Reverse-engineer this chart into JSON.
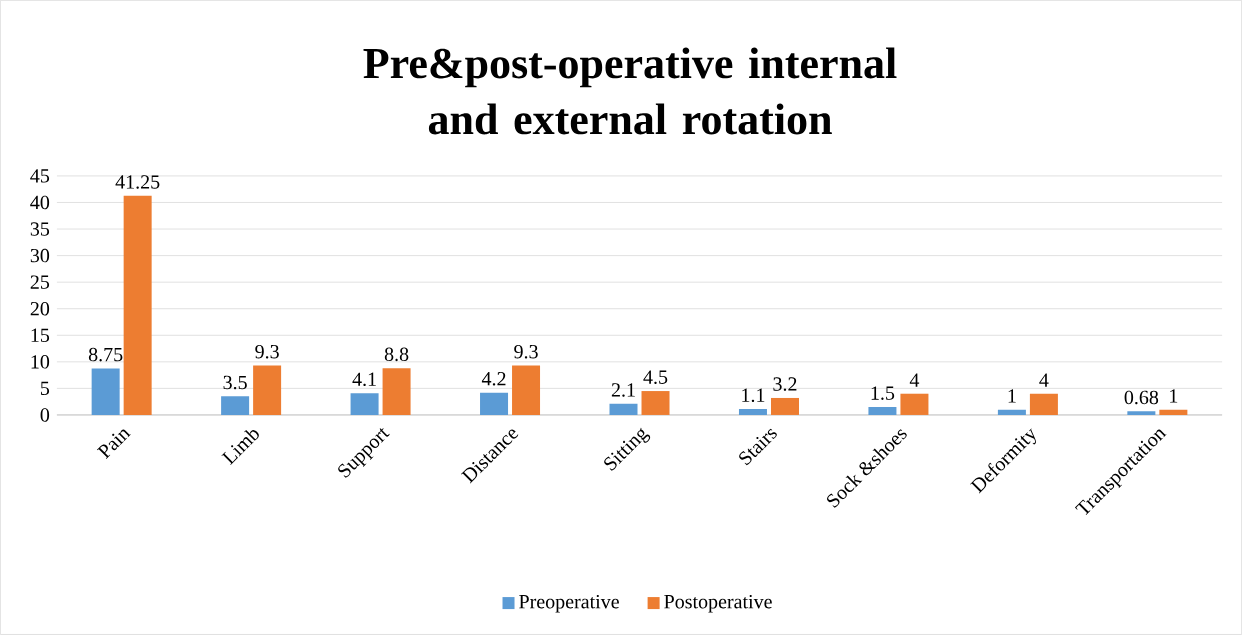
{
  "chart_data": {
    "type": "bar",
    "title": "Pre&post-operative internal and external rotation",
    "categories": [
      "Pain",
      "Limb",
      "Support",
      "Distance",
      "Sitting",
      "Stairs",
      "Sock &shoes",
      "Deformity",
      "Transportation"
    ],
    "series": [
      {
        "name": "Preoperative",
        "color": "#5b9bd5",
        "values": [
          8.75,
          3.5,
          4.1,
          4.2,
          2.1,
          1.1,
          1.5,
          1,
          0.68
        ]
      },
      {
        "name": "Postoperative",
        "color": "#ed7d31",
        "values": [
          41.25,
          9.3,
          8.8,
          9.3,
          4.5,
          3.2,
          4,
          4,
          1
        ]
      }
    ],
    "ylim": [
      0,
      45
    ],
    "yticks": [
      0,
      5,
      10,
      15,
      20,
      25,
      30,
      35,
      40,
      45
    ],
    "grid": "y",
    "legend": "bottom",
    "data_labels": true
  }
}
